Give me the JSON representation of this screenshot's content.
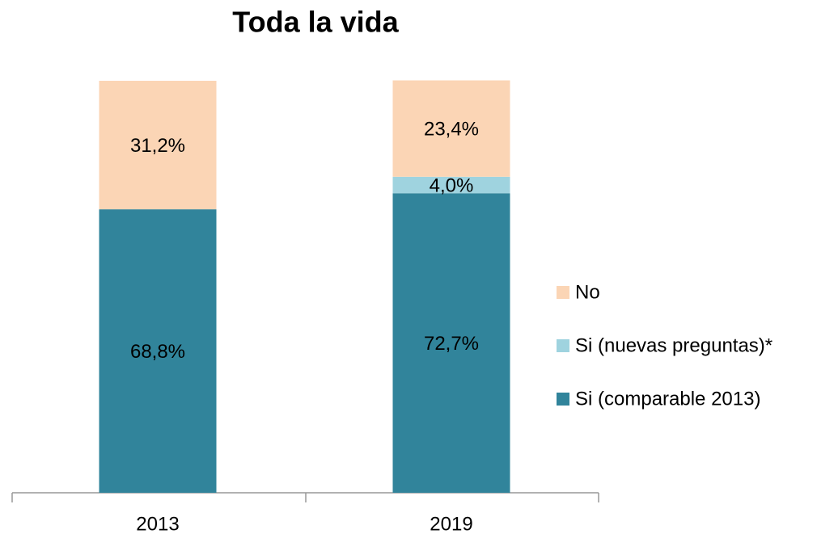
{
  "chart_data": {
    "type": "stacked_bar",
    "title": "Toda la vida",
    "categories": [
      "2013",
      "2019"
    ],
    "series": [
      {
        "name": "Si (comparable 2013)",
        "color": "#31849b",
        "values": [
          68.8,
          72.7
        ],
        "value_labels": [
          "68,8%",
          "72,7%"
        ]
      },
      {
        "name": "Si (nuevas preguntas)*",
        "color": "#9fd3df",
        "values": [
          null,
          4.0
        ],
        "value_labels": [
          null,
          "4,0%"
        ]
      },
      {
        "name": "No",
        "color": "#fbd5b5",
        "values": [
          31.2,
          23.4
        ],
        "value_labels": [
          "31,2%",
          "23,4%"
        ]
      }
    ],
    "ylim": [
      0,
      100
    ],
    "legend": "right"
  }
}
